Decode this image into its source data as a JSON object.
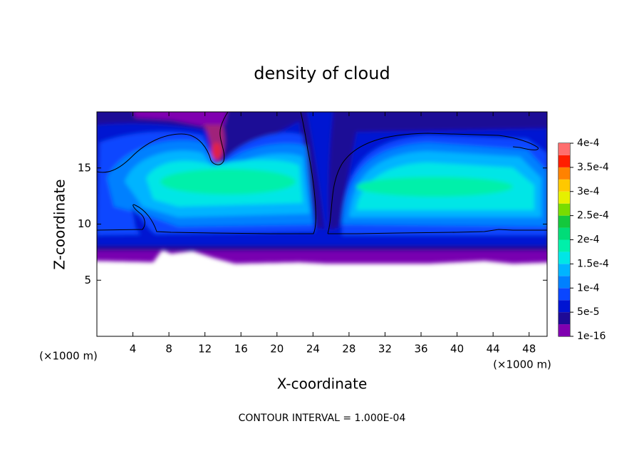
{
  "chart_data": {
    "type": "contour",
    "title": "density of cloud",
    "x_label": "X-coordinate",
    "y_label": "Z-coordinate",
    "x_unit_label": "(×1000 m)",
    "y_unit_label": "(×1000 m)",
    "note": "CONTOUR INTERVAL = 1.000E-04",
    "xlim": [
      0,
      50
    ],
    "xticks": [
      4,
      8,
      12,
      16,
      20,
      24,
      28,
      32,
      36,
      40,
      44,
      48
    ],
    "ylim": [
      0,
      20
    ],
    "yticks": [
      5,
      10,
      15
    ],
    "colorbar_ticks": [
      {
        "value": 1e-16,
        "label": "1e-16"
      },
      {
        "value": 5e-05,
        "label": "5e-5"
      },
      {
        "value": 0.0001,
        "label": "1e-4"
      },
      {
        "value": 0.00015,
        "label": "1.5e-4"
      },
      {
        "value": 0.0002,
        "label": "2e-4"
      },
      {
        "value": 0.00025,
        "label": "2.5e-4"
      },
      {
        "value": 0.0003,
        "label": "3e-4"
      },
      {
        "value": 0.00035,
        "label": "3.5e-4"
      },
      {
        "value": 0.0004,
        "label": "4e-4"
      }
    ],
    "colorbar_colors": [
      "#8000b0",
      "#1e0a96",
      "#0014d2",
      "#0a46ff",
      "#0080ff",
      "#00b4ff",
      "#00e6e6",
      "#00f0aa",
      "#00dc78",
      "#14c83c",
      "#78dc00",
      "#e6f000",
      "#ffc800",
      "#ff8200",
      "#ff1e00",
      "#ff6e6e"
    ]
  }
}
